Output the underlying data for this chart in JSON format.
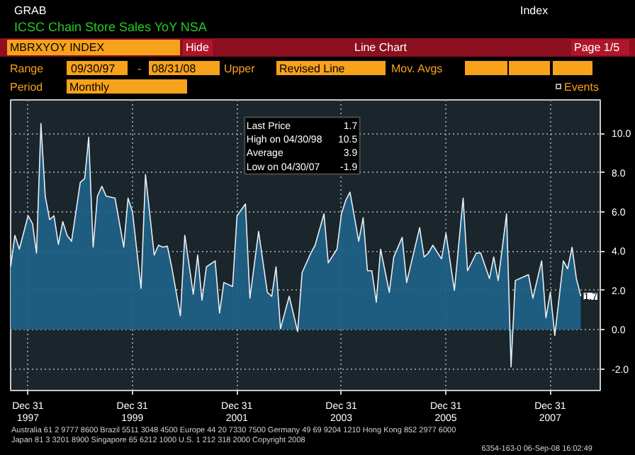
{
  "chart_data": {
    "type": "area",
    "title": "ICSC Chain Store Sales YoY NSA",
    "xlim": [
      "1997-09-01",
      "2008-12-15"
    ],
    "ylim": [
      -3.1,
      11.7
    ],
    "xticks": [
      {
        "value": "1997-12-31",
        "label": "Dec 31\n1997"
      },
      {
        "value": "1999-12-31",
        "label": "Dec 31\n1999"
      },
      {
        "value": "2001-12-31",
        "label": "Dec 31\n2001"
      },
      {
        "value": "2003-12-31",
        "label": "Dec 31\n2003"
      },
      {
        "value": "2005-12-31",
        "label": "Dec 31\n2005"
      },
      {
        "value": "2007-12-31",
        "label": "Dec 31\n2007"
      }
    ],
    "yticks": [
      {
        "value": -2,
        "label": "-2.0"
      },
      {
        "value": 0,
        "label": "0.0"
      },
      {
        "value": 2,
        "label": "2.0"
      },
      {
        "value": 4,
        "label": "4.0"
      },
      {
        "value": 6,
        "label": "6.0"
      },
      {
        "value": 8,
        "label": "8.0"
      },
      {
        "value": 10,
        "label": "10.0"
      }
    ],
    "grid": true,
    "x": [
      "1997-09",
      "1997-10",
      "1997-11",
      "1998-01",
      "1998-02",
      "1998-03",
      "1998-04",
      "1998-05",
      "1998-06",
      "1998-07",
      "1998-08",
      "1998-09",
      "1998-10",
      "1998-11",
      "1999-01",
      "1999-02",
      "1999-03",
      "1999-04",
      "1999-05",
      "1999-06",
      "1999-07",
      "1999-09",
      "1999-11",
      "1999-12",
      "2000-01",
      "2000-03",
      "2000-04",
      "2000-06",
      "2000-07",
      "2000-08",
      "2000-09",
      "2000-10",
      "2000-12",
      "2001-01",
      "2001-03",
      "2001-04",
      "2001-05",
      "2001-06",
      "2001-08",
      "2001-09",
      "2001-10",
      "2001-12",
      "2002-01",
      "2002-03",
      "2002-04",
      "2002-06",
      "2002-08",
      "2002-09",
      "2002-10",
      "2002-11",
      "2003-01",
      "2003-03",
      "2003-04",
      "2003-06",
      "2003-07",
      "2003-09",
      "2003-10",
      "2003-12",
      "2004-01",
      "2004-02",
      "2004-03",
      "2004-05",
      "2004-06",
      "2004-07",
      "2004-08",
      "2004-09",
      "2004-10",
      "2004-12",
      "2005-01",
      "2005-03",
      "2005-04",
      "2005-07",
      "2005-08",
      "2005-09",
      "2005-10",
      "2005-12",
      "2006-01",
      "2006-03",
      "2006-05",
      "2006-06",
      "2006-08",
      "2006-09",
      "2006-11",
      "2006-12",
      "2007-01",
      "2007-03",
      "2007-04",
      "2007-05",
      "2007-06",
      "2007-08",
      "2007-09",
      "2007-11",
      "2007-12",
      "2008-01",
      "2008-02",
      "2008-04",
      "2008-05",
      "2008-06",
      "2008-07",
      "2008-08"
    ],
    "series": [
      {
        "color": "#1f6389",
        "values": [
          3.2,
          4.8,
          4.1,
          5.8,
          5.4,
          3.9,
          10.5,
          6.8,
          5.6,
          5.8,
          4.35,
          5.5,
          4.8,
          4.5,
          7.5,
          7.7,
          9.8,
          4.2,
          6.8,
          7.3,
          6.8,
          6.7,
          4.2,
          6.7,
          6.0,
          2.1,
          7.9,
          3.8,
          4.3,
          4.2,
          4.25,
          3.2,
          0.7,
          4.8,
          1.8,
          3.8,
          1.5,
          3.2,
          3.5,
          0.85,
          2.4,
          2.2,
          5.8,
          6.4,
          1.6,
          5.0,
          1.9,
          1.7,
          3.2,
          0.05,
          1.7,
          -0.1,
          2.9,
          3.9,
          4.3,
          5.9,
          3.4,
          4.1,
          5.9,
          6.6,
          7.0,
          4.5,
          5.7,
          3.0,
          3.0,
          1.4,
          4.1,
          1.9,
          3.7,
          4.7,
          2.4,
          5.2,
          3.7,
          3.9,
          4.3,
          3.6,
          4.9,
          2.0,
          6.7,
          3.0,
          3.9,
          3.9,
          2.6,
          3.7,
          2.5,
          5.9,
          -1.9,
          2.5,
          2.6,
          2.8,
          1.6,
          3.5,
          0.6,
          1.9,
          -0.3,
          3.5,
          3.1,
          4.2,
          2.6,
          1.7
        ]
      }
    ],
    "annotations": [
      "GRAB",
      "Index",
      "MBRXYOY INDEX",
      "Hide",
      "Line Chart",
      "Page 1/5",
      "Range",
      "09/30/97",
      "-",
      "08/31/08",
      "Upper",
      "Revised Line",
      "Mov. Avgs",
      "Period",
      "Monthly",
      "Events",
      "Last Price",
      "1.7",
      "High on 04/30/98",
      "10.5",
      "Average",
      "3.9",
      "Low on 04/30/07",
      "-1.9",
      {
        "text": "1.7",
        "x": "2008-08",
        "y": 1.7
      },
      "Australia 61 2 9777 8600 Brazil 5511 3048 4500 Europe 44 20 7330 7500 Germany 49 69 9204 1210 Hong Kong 852 2977 6000",
      "Japan 81 3 3201 8900 Singapore 65 6212 1000 U.S. 1 212 318 2000 Copyright 2008",
      "6354-163-0 06-Sep-08 16:02:49"
    ]
  }
}
